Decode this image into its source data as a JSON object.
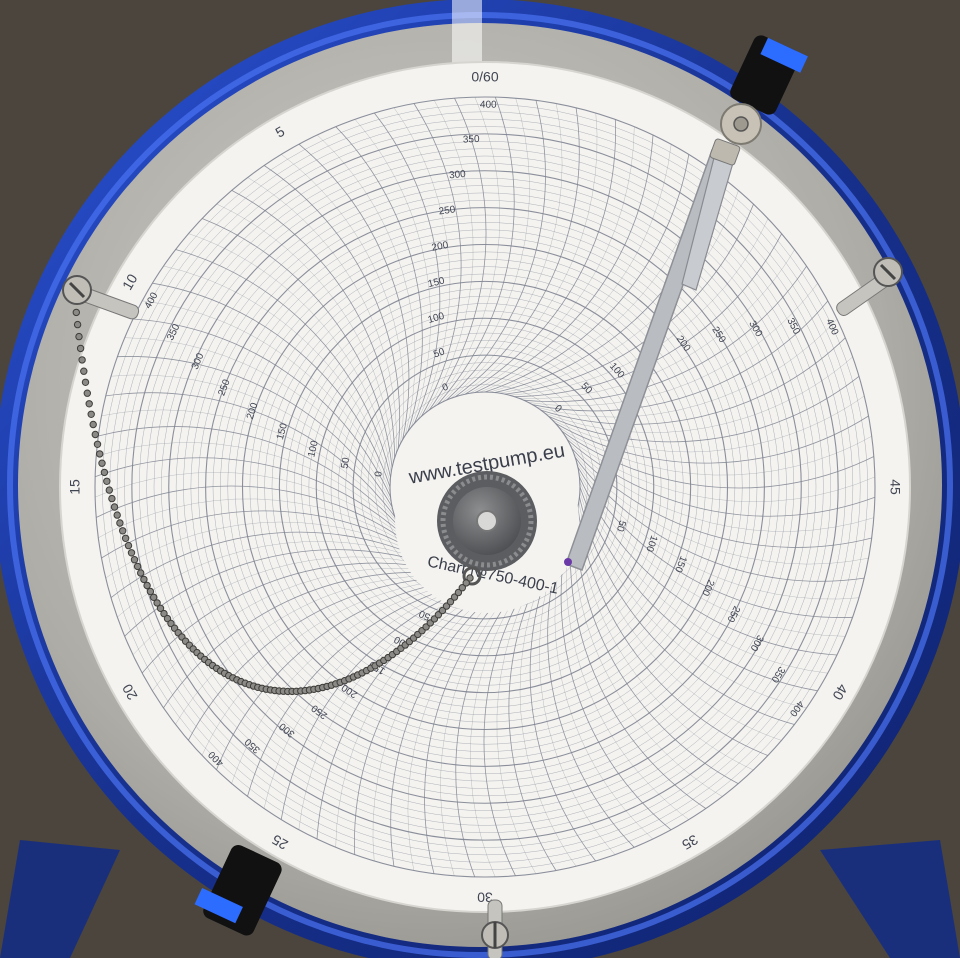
{
  "chart": {
    "minute_labels": [
      "0/60",
      "5",
      "10",
      "15",
      "20",
      "25",
      "30",
      "35",
      "40",
      "45"
    ],
    "scale_labels": [
      "400",
      "350",
      "300",
      "250",
      "200",
      "150",
      "100",
      "50",
      "0"
    ],
    "center_url": "www.testpump.eu",
    "center_chart_no": "Chart №750-400-1"
  },
  "colors": {
    "rim_blue": "#1f3fae",
    "plate_steel": "#b8b6b1",
    "paper": "#f4f3f0",
    "grid_line": "#7f8491",
    "ink": "#404552",
    "knob": "#6f7174"
  },
  "icons": {
    "pen_arm": "recorder-pen-arm-icon",
    "chain": "bead-chain-icon",
    "knob": "center-knob-icon",
    "screw": "screw-clip-icon"
  }
}
